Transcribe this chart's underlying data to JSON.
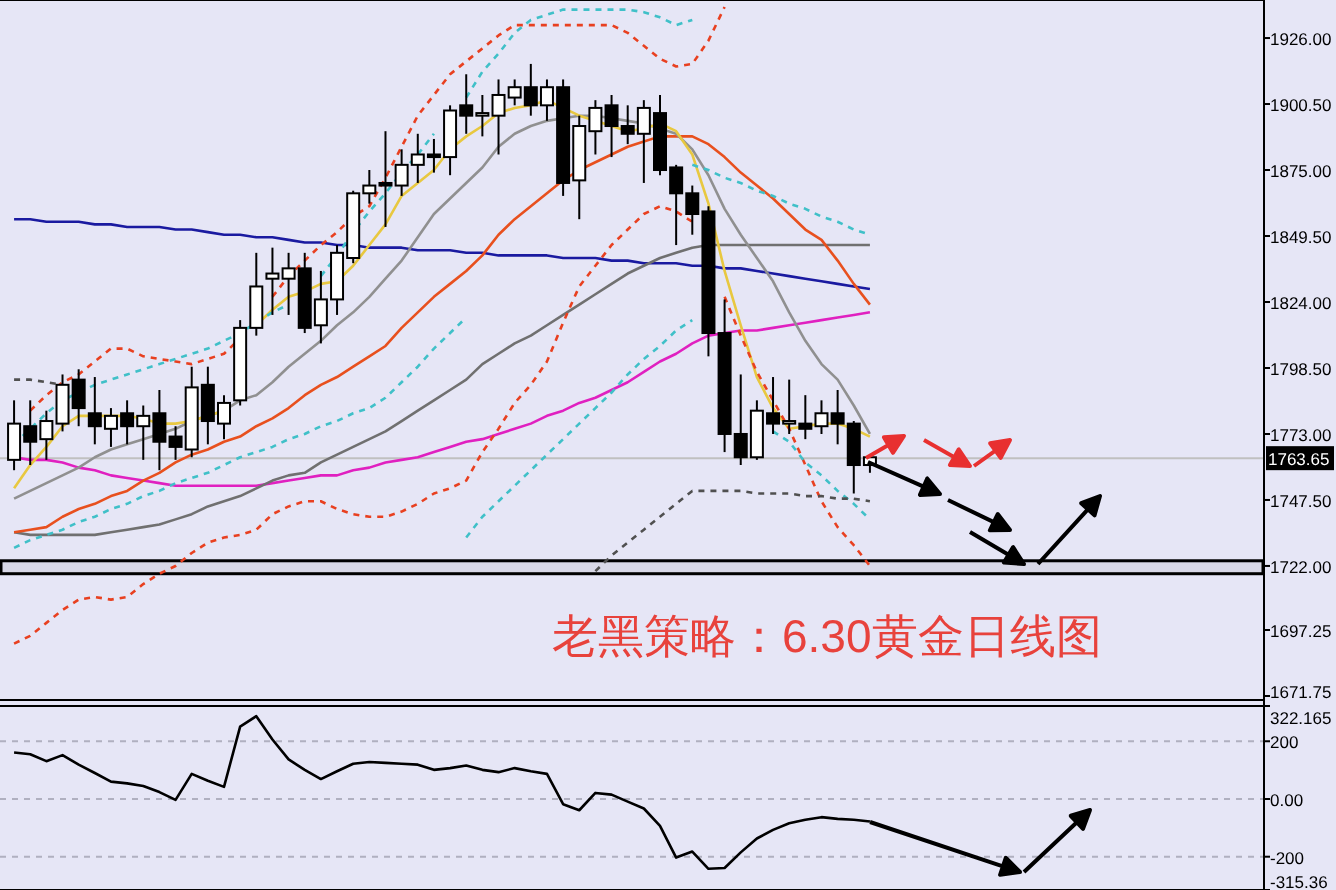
{
  "chart_data": [
    {
      "type": "candlestick",
      "categories": [
        null,
        null,
        null,
        null,
        null,
        null,
        null,
        null,
        null,
        null,
        null,
        null,
        null,
        null,
        null,
        null,
        null,
        null,
        null,
        null,
        null,
        null,
        null,
        null,
        null,
        null,
        null,
        null,
        null,
        null,
        null,
        null,
        null,
        null,
        null,
        null,
        null,
        null,
        null,
        null,
        null,
        null,
        null,
        null,
        null,
        null,
        null,
        null,
        null,
        null,
        null,
        null,
        null,
        null
      ],
      "ohlc": [
        [
          1763,
          1786,
          1759,
          1777
        ],
        [
          1776,
          1786,
          1761,
          1770
        ],
        [
          1771,
          1782,
          1763,
          1778
        ],
        [
          1777,
          1796,
          1774,
          1792
        ],
        [
          1794,
          1798,
          1776,
          1783
        ],
        [
          1781,
          1795,
          1769,
          1776
        ],
        [
          1775,
          1783,
          1768,
          1780
        ],
        [
          1781,
          1786,
          1769,
          1776
        ],
        [
          1776,
          1784,
          1763,
          1780
        ],
        [
          1781,
          1790,
          1759,
          1770
        ],
        [
          1772,
          1776,
          1763,
          1768
        ],
        [
          1767,
          1799,
          1764,
          1791
        ],
        [
          1792,
          1799,
          1769,
          1778
        ],
        [
          1777,
          1788,
          1771,
          1785
        ],
        [
          1786,
          1817,
          1784,
          1814
        ],
        [
          1814,
          1843,
          1811,
          1830
        ],
        [
          1833,
          1845,
          1819,
          1835
        ],
        [
          1833,
          1843,
          1819,
          1837
        ],
        [
          1837,
          1843,
          1812,
          1814
        ],
        [
          1815,
          1836,
          1808,
          1825
        ],
        [
          1825,
          1846,
          1819,
          1843
        ],
        [
          1841,
          1867,
          1839,
          1866
        ],
        [
          1866,
          1875,
          1862,
          1869
        ],
        [
          1870,
          1890,
          1853,
          1869
        ],
        [
          1869,
          1883,
          1865,
          1877
        ],
        [
          1877,
          1889,
          1870,
          1881
        ],
        [
          1881,
          1887,
          1874,
          1880
        ],
        [
          1880,
          1900,
          1873,
          1898
        ],
        [
          1900,
          1912,
          1889,
          1896
        ],
        [
          1896,
          1904,
          1888,
          1897
        ],
        [
          1896,
          1910,
          1881,
          1904
        ],
        [
          1903,
          1910,
          1900,
          1907
        ],
        [
          1907,
          1916,
          1896,
          1900
        ],
        [
          1900,
          1910,
          1894,
          1907
        ],
        [
          1907,
          1910,
          1865,
          1870
        ],
        [
          1871,
          1896,
          1856,
          1892
        ],
        [
          1890,
          1902,
          1881,
          1899
        ],
        [
          1900,
          1904,
          1880,
          1892
        ],
        [
          1892,
          1900,
          1885,
          1889
        ],
        [
          1889,
          1902,
          1870,
          1899
        ],
        [
          1897,
          1904,
          1873,
          1875
        ],
        [
          1876,
          1877,
          1846,
          1866
        ],
        [
          1866,
          1869,
          1850,
          1858
        ],
        [
          1859,
          1861,
          1803,
          1812
        ],
        [
          1812,
          1825,
          1766,
          1773
        ],
        [
          1773,
          1796,
          1761,
          1764
        ],
        [
          1764,
          1786,
          1763,
          1782
        ],
        [
          1781,
          1795,
          1773,
          1777
        ],
        [
          1777,
          1794,
          1773,
          1778
        ],
        [
          1777,
          1788,
          1771,
          1775
        ],
        [
          1776,
          1786,
          1773,
          1781
        ],
        [
          1781,
          1790,
          1769,
          1777
        ],
        [
          1777,
          1778,
          1750,
          1761
        ],
        [
          1761,
          1765,
          1758,
          1764
        ]
      ],
      "series": [
        {
          "type": "line",
          "color": "#1a1aa0",
          "values": [
            1856,
            1856,
            1855,
            1855,
            1855,
            1854,
            1854,
            1853,
            1853,
            1853,
            1852,
            1852,
            1851,
            1850,
            1850,
            1849,
            1849,
            1848,
            1847,
            1847,
            1846,
            1846,
            1845,
            1845,
            1845,
            1844,
            1844,
            1844,
            1843,
            1843,
            1842,
            1842,
            1842,
            1842,
            1841,
            1841,
            1841,
            1840,
            1840,
            1839,
            1839,
            1839,
            1838,
            1838,
            1837,
            1837,
            1836,
            1835,
            1834,
            1833,
            1832,
            1831,
            1830,
            1829
          ]
        },
        {
          "type": "line",
          "color": "#e020c0",
          "values": [
            1764,
            1763,
            1763,
            1762,
            1760,
            1759,
            1757,
            1756,
            1755,
            1754,
            1753,
            1753,
            1753,
            1753,
            1753,
            1753,
            1754,
            1755,
            1756,
            1757,
            1757,
            1759,
            1760,
            1762,
            1763,
            1764,
            1766,
            1768,
            1770,
            1771,
            1773,
            1775,
            1777,
            1780,
            1782,
            1785,
            1787,
            1790,
            1793,
            1797,
            1801,
            1804,
            1808,
            1811,
            1812,
            1813,
            1813,
            1814,
            1815,
            1816,
            1817,
            1818,
            1819,
            1820
          ]
        },
        {
          "type": "line",
          "color": "#707070",
          "values": [
            1735,
            1734,
            1734,
            1734,
            1734,
            1734,
            1735,
            1736,
            1737,
            1738,
            1740,
            1742,
            1745,
            1747,
            1749,
            1752,
            1755,
            1757,
            1758,
            1762,
            1765,
            1768,
            1771,
            1774,
            1778,
            1782,
            1786,
            1790,
            1794,
            1800,
            1804,
            1808,
            1811,
            1815,
            1819,
            1823,
            1827,
            1831,
            1835,
            1838,
            1841,
            1843,
            1845,
            1846,
            1846,
            1846,
            1846,
            1846,
            1846,
            1846,
            1846,
            1846,
            1846,
            1846
          ]
        },
        {
          "type": "line",
          "color": "#e8501e",
          "values": [
            1735,
            1736,
            1737,
            1741,
            1744,
            1746,
            1749,
            1751,
            1755,
            1758,
            1762,
            1765,
            1767,
            1770,
            1772,
            1776,
            1779,
            1783,
            1788,
            1792,
            1795,
            1799,
            1803,
            1807,
            1814,
            1820,
            1826,
            1831,
            1836,
            1842,
            1850,
            1856,
            1861,
            1866,
            1871,
            1875,
            1878,
            1881,
            1884,
            1886,
            1888,
            1888,
            1888,
            1885,
            1880,
            1874,
            1869,
            1864,
            1858,
            1852,
            1848,
            1840,
            1831,
            1823
          ]
        },
        {
          "type": "line",
          "color": "#909090",
          "values": [
            1748,
            1751,
            1754,
            1757,
            1760,
            1764,
            1767,
            1769,
            1771,
            1773,
            1775,
            1778,
            1780,
            1782,
            1786,
            1788,
            1793,
            1799,
            1804,
            1809,
            1815,
            1820,
            1826,
            1833,
            1840,
            1849,
            1858,
            1864,
            1870,
            1876,
            1884,
            1889,
            1892,
            1894,
            1895,
            1896,
            1896,
            1895,
            1894,
            1893,
            1891,
            1889,
            1883,
            1873,
            1860,
            1850,
            1841,
            1832,
            1820,
            1809,
            1800,
            1794,
            1784,
            1773
          ]
        },
        {
          "type": "line",
          "color": "#e8c840",
          "values": [
            1752,
            1761,
            1768,
            1776,
            1780,
            1780,
            1780,
            1780,
            1779,
            1777,
            1777,
            1778,
            1780,
            1782,
            null,
            1815,
            1821,
            1826,
            1828,
            1831,
            1832,
            1838,
            1846,
            1854,
            1865,
            1870,
            1875,
            1883,
            1888,
            1892,
            1897,
            1899,
            1900,
            1902,
            1899,
            1896,
            1894,
            1892,
            1890,
            1891,
            1893,
            1890,
            1881,
            1862,
            1836,
            1815,
            1795,
            1783,
            1775,
            1776,
            1777,
            1777,
            1775,
            1772
          ]
        },
        {
          "type": "line",
          "color": "#e84020",
          "line_style": "dashed",
          "values": [
            null,
            1782,
            1788,
            1793,
            1796,
            1801,
            1806,
            1806,
            1803,
            1802,
            1801,
            1800,
            1802,
            1804,
            1810,
            null,
            1826,
            1834,
            1840,
            1846,
            1851,
            1857,
            1861,
            1872,
            1884,
            1896,
            1904,
            1912,
            1917,
            1922,
            1927,
            1931,
            1931,
            1931,
            1931,
            1931,
            1931,
            1931,
            1928,
            1923,
            1918,
            1915,
            1916,
            1925,
            1938,
            null,
            null,
            null,
            null,
            null,
            null,
            null,
            null,
            null
          ]
        },
        {
          "type": "line",
          "color": "#e84020",
          "line_style": "dashed",
          "values": [
            1692,
            1695,
            1700,
            1705,
            1709,
            1710,
            1709,
            1710,
            1715,
            1719,
            1722,
            1727,
            1731,
            1733,
            1734,
            1736,
            1742,
            1745,
            1747,
            1747,
            1744,
            1742,
            1741,
            1741,
            1743,
            1746,
            1750,
            1752,
            1755,
            1766,
            1775,
            1785,
            1792,
            1801,
            1816,
            1830,
            1838,
            1846,
            1852,
            1858,
            1861,
            1859,
            1855,
            null,
            1826,
            1811,
            1797,
            1786,
            1775,
            1761,
            1747,
            1737,
            1730,
            1722
          ]
        },
        {
          "type": "line",
          "color": "#40c0c8",
          "line_style": "dashed",
          "values": [
            1769,
            1775,
            1781,
            1786,
            1789,
            1792,
            1794,
            1796,
            1798,
            1800,
            1802,
            1804,
            1806,
            1809,
            1812,
            1816,
            1820,
            1823,
            null,
            1834,
            1842,
            1851,
            1859,
            1866,
            1874,
            1881,
            1889,
            null,
            1903,
            1913,
            1920,
            1928,
            1933,
            1935,
            1937,
            1937,
            1937,
            1937,
            1937,
            1936,
            1934,
            1931,
            1933,
            null,
            null,
            null,
            null,
            null,
            null,
            null,
            null,
            null,
            null,
            null
          ]
        },
        {
          "type": "line",
          "color": "#40c0c8",
          "line_style": "dashed",
          "values": [
            null,
            null,
            null,
            null,
            null,
            null,
            null,
            null,
            null,
            null,
            null,
            null,
            null,
            null,
            null,
            null,
            null,
            null,
            null,
            null,
            null,
            null,
            null,
            null,
            null,
            null,
            null,
            null,
            null,
            null,
            null,
            null,
            null,
            null,
            null,
            null,
            null,
            null,
            null,
            null,
            null,
            null,
            1877,
            1875,
            1872,
            1870,
            1867,
            1865,
            1862,
            1860,
            1857,
            1855,
            1852,
            1850
          ]
        },
        {
          "type": "line",
          "color": "#40c0c8",
          "line_style": "dashed",
          "values": [
            1729,
            1732,
            1734,
            1736,
            1739,
            1741,
            1744,
            1746,
            1749,
            1751,
            1754,
            1756,
            1758,
            1761,
            1764,
            1766,
            1768,
            1771,
            1773,
            1776,
            1778,
            1781,
            1783,
            1787,
            1793,
            1799,
            1806,
            1812,
            1818,
            null,
            null,
            null,
            null,
            null,
            null,
            null,
            null,
            null,
            null,
            null,
            null,
            null,
            null,
            null,
            null,
            null,
            null,
            null,
            null,
            null,
            null,
            null,
            null,
            null
          ]
        },
        {
          "type": "line",
          "color": "#40c0c8",
          "line_style": "dashed",
          "values": [
            null,
            null,
            null,
            null,
            null,
            null,
            null,
            null,
            null,
            null,
            null,
            null,
            null,
            null,
            null,
            null,
            null,
            null,
            null,
            null,
            null,
            null,
            null,
            null,
            null,
            null,
            null,
            null,
            1733,
            1741,
            1747,
            1753,
            1759,
            1765,
            1771,
            1777,
            1783,
            1789,
            1796,
            1802,
            1807,
            1813,
            1817,
            null,
            null,
            null,
            null,
            1774,
            1770,
            1762,
            1757,
            1751,
            1746,
            1740
          ]
        },
        {
          "type": "line",
          "color": "#505050",
          "line_style": "dashed",
          "values": [
            1794,
            1794,
            1793,
            1792,
            null,
            null,
            null,
            null,
            null,
            null,
            null,
            null,
            null,
            null,
            null,
            null,
            null,
            null,
            null,
            null,
            null,
            null,
            null,
            null,
            null,
            null,
            null,
            null,
            null,
            null,
            null,
            null,
            null,
            null,
            null,
            null,
            null,
            null,
            null,
            null,
            null,
            null,
            null,
            null,
            null,
            null,
            null,
            null,
            null,
            null,
            null,
            null,
            null,
            null
          ]
        },
        {
          "type": "line",
          "color": "#505050",
          "line_style": "dashed",
          "values": [
            null,
            null,
            null,
            null,
            null,
            null,
            null,
            null,
            null,
            null,
            null,
            null,
            null,
            null,
            null,
            null,
            null,
            null,
            null,
            null,
            null,
            null,
            null,
            null,
            null,
            null,
            null,
            null,
            null,
            null,
            null,
            null,
            null,
            null,
            null,
            null,
            1720,
            1726,
            1731,
            1736,
            1741,
            1746,
            1751,
            1751,
            1751,
            1751,
            1750,
            1750,
            1750,
            1749,
            1749,
            1748,
            1748,
            1747
          ]
        }
      ],
      "ylim": [
        1670.2,
        1940.7
      ],
      "yticks": [
        {
          "value": 1926,
          "label": "1926.00"
        },
        {
          "value": 1900.5,
          "label": "1900.50"
        },
        {
          "value": 1875,
          "label": "1875.00"
        },
        {
          "value": 1849.5,
          "label": "1849.50"
        },
        {
          "value": 1824,
          "label": "1824.00"
        },
        {
          "value": 1798.5,
          "label": "1798.50"
        },
        {
          "value": 1773,
          "label": "1773.00"
        },
        {
          "value": 1747.5,
          "label": "1747.50"
        },
        {
          "value": 1722,
          "label": "1722.00"
        },
        1697.25,
        1671.75
      ],
      "tick_labels": "y",
      "ref_lines": [
        {
          "axis": "y",
          "value": 1763.65,
          "label": "1763.65",
          "color": "#c0c0c0"
        }
      ],
      "bands": [
        {
          "axis": "y",
          "from": 1719,
          "to": 1724,
          "color": "#000000"
        }
      ],
      "annotations": [
        "老黑策略：6.30黄金日线图"
      ]
    },
    {
      "type": "line",
      "categories": [
        null,
        null,
        null,
        null,
        null,
        null,
        null,
        null,
        null,
        null,
        null,
        null,
        null,
        null,
        null,
        null,
        null,
        null,
        null,
        null,
        null,
        null,
        null,
        null,
        null,
        null,
        null,
        null,
        null,
        null,
        null,
        null,
        null,
        null,
        null,
        null,
        null,
        null,
        null,
        null,
        null,
        null,
        null,
        null,
        null,
        null,
        null,
        null,
        null,
        null,
        null,
        null,
        null,
        null
      ],
      "series": [
        {
          "color": "#000000",
          "values": [
            161,
            155,
            131,
            152,
            119,
            90,
            60,
            54,
            45,
            24,
            -3,
            87,
            63,
            42,
            251,
            287,
            206,
            137,
            101,
            69,
            96,
            122,
            128,
            125,
            122,
            119,
            101,
            107,
            116,
            101,
            93,
            107,
            96,
            87,
            -18,
            -39,
            21,
            15,
            -9,
            -33,
            -93,
            -203,
            -182,
            -242,
            -239,
            -185,
            -137,
            -107,
            -84,
            -72,
            -63,
            -69,
            -72,
            -78
          ]
        }
      ],
      "ylim": [
        -315.36,
        322.165
      ],
      "yticks": [
        {
          "value": 322.165,
          "label": "322.165"
        },
        200,
        {
          "value": 0,
          "label": "0.00"
        },
        -200,
        {
          "value": -315.36,
          "label": "-315.36"
        }
      ],
      "grid": "y",
      "tick_labels": "y"
    }
  ]
}
